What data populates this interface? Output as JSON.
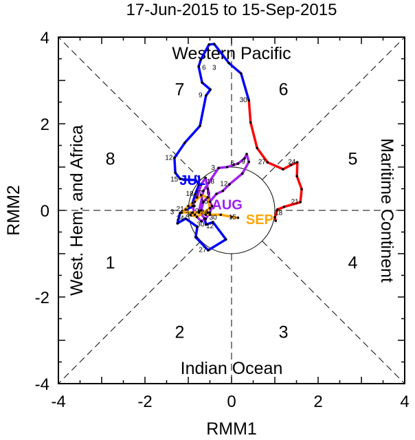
{
  "chart_data": {
    "type": "line",
    "title": "17-Jun-2015 to 15-Sep-2015",
    "xlabel": "RMM1",
    "ylabel": "RMM2",
    "xlim": [
      -4,
      4
    ],
    "ylim": [
      -4,
      4
    ],
    "xticks": [
      -4,
      -2,
      0,
      2,
      4
    ],
    "yticks": [
      -4,
      -2,
      0,
      2,
      4
    ],
    "tick_labels": [
      "-4",
      "-2",
      "0",
      "2",
      "4"
    ],
    "unit_circle_radius": 1,
    "regions": {
      "top": "Western Pacific",
      "bottom": "Indian Ocean",
      "left": "West. Hem. and Africa",
      "right": "Maritime Continent"
    },
    "phases": [
      {
        "label": "1",
        "x": -2.8,
        "y": -1.2
      },
      {
        "label": "2",
        "x": -1.2,
        "y": -2.8
      },
      {
        "label": "3",
        "x": 1.2,
        "y": -2.8
      },
      {
        "label": "4",
        "x": 2.8,
        "y": -1.2
      },
      {
        "label": "5",
        "x": 2.8,
        "y": 1.2
      },
      {
        "label": "6",
        "x": 1.2,
        "y": 2.8
      },
      {
        "label": "7",
        "x": -1.2,
        "y": 2.8
      },
      {
        "label": "8",
        "x": -2.8,
        "y": 1.2
      }
    ],
    "series": [
      {
        "name": "Jun",
        "color": "#ff0000",
        "start_day": 17,
        "month_label": "",
        "points": [
          [
            1.02,
            -0.24
          ],
          [
            1.0,
            -0.16
          ],
          [
            1.06,
            0.02
          ],
          [
            1.21,
            0.08
          ],
          [
            1.59,
            0.19
          ],
          [
            1.62,
            0.49
          ],
          [
            1.51,
            0.79
          ],
          [
            1.52,
            1.11
          ],
          [
            1.38,
            1.05
          ],
          [
            1.19,
            0.95
          ],
          [
            0.83,
            1.11
          ],
          [
            0.59,
            1.44
          ],
          [
            0.44,
            2.03
          ],
          [
            0.4,
            2.54
          ]
        ]
      },
      {
        "name": "Jul",
        "color": "#0000ff",
        "start_day": 1,
        "month_label": "JUL",
        "month_label_at": [
          -1.25,
          0.68
        ],
        "points": [
          [
            0.22,
            3.16
          ],
          [
            -0.06,
            3.4
          ],
          [
            -0.4,
            3.84
          ],
          [
            -0.52,
            3.83
          ],
          [
            -0.71,
            3.48
          ],
          [
            -0.76,
            3.32
          ],
          [
            -0.68,
            2.95
          ],
          [
            -0.49,
            2.79
          ],
          [
            -0.59,
            2.65
          ],
          [
            -0.73,
            1.95
          ],
          [
            -1.08,
            1.56
          ],
          [
            -1.32,
            1.21
          ],
          [
            -1.3,
            0.87
          ],
          [
            -1.19,
            0.73
          ],
          [
            -1.1,
            0.71
          ],
          [
            -0.83,
            0.7
          ],
          [
            -0.75,
            0.6
          ],
          [
            -0.84,
            0.37
          ],
          [
            -0.9,
            0.17
          ],
          [
            -0.86,
            0.1
          ],
          [
            -1.06,
            0.02
          ],
          [
            -1.19,
            -0.06
          ],
          [
            -1.25,
            -0.3
          ],
          [
            -1.06,
            -0.19
          ],
          [
            -0.79,
            -0.38
          ],
          [
            -0.83,
            -0.62
          ],
          [
            -0.54,
            -0.92
          ],
          [
            -0.13,
            -0.67
          ],
          [
            -0.43,
            -0.27
          ],
          [
            -0.59,
            -0.33
          ],
          [
            -0.62,
            -0.19
          ]
        ]
      },
      {
        "name": "Aug",
        "color": "#a020f0",
        "start_day": 1,
        "month_label": "AUG",
        "month_label_at": [
          -0.45,
          0.12
        ],
        "points": [
          [
            -0.75,
            -0.02
          ],
          [
            -0.65,
            0.45
          ],
          [
            -0.3,
            0.98
          ],
          [
            -0.1,
            1.0
          ],
          [
            0.05,
            1.05
          ],
          [
            0.15,
            1.08
          ],
          [
            0.3,
            1.2
          ],
          [
            0.35,
            1.3
          ],
          [
            0.4,
            1.12
          ],
          [
            0.25,
            0.85
          ],
          [
            -0.05,
            0.6
          ],
          [
            -0.05,
            0.6
          ],
          [
            -0.2,
            0.45
          ],
          [
            -0.35,
            0.38
          ],
          [
            -0.5,
            0.2
          ],
          [
            -0.55,
            0.5
          ],
          [
            -0.6,
            0.75
          ],
          [
            -0.7,
            0.6
          ],
          [
            -0.8,
            0.3
          ],
          [
            -0.9,
            0.1
          ],
          [
            -0.85,
            -0.1
          ],
          [
            -0.7,
            -0.25
          ],
          [
            -0.6,
            -0.2
          ],
          [
            -0.5,
            -0.05
          ],
          [
            -0.45,
            0.1
          ],
          [
            -0.55,
            0.3
          ],
          [
            -0.65,
            0.2
          ],
          [
            -0.7,
            0.0
          ],
          [
            -0.6,
            -0.1
          ],
          [
            -0.55,
            -0.05
          ],
          [
            -0.55,
            -0.05
          ]
        ]
      },
      {
        "name": "Sep",
        "color": "#ffa500",
        "start_day": 1,
        "month_label": "SEP",
        "month_label_at": [
          0.3,
          -0.22
        ],
        "points": [
          [
            -0.55,
            -0.05
          ],
          [
            -0.9,
            -0.05
          ],
          [
            -1.15,
            -0.05
          ],
          [
            -1.0,
            0.1
          ],
          [
            -0.85,
            0.2
          ],
          [
            -0.7,
            0.35
          ],
          [
            -0.55,
            0.3
          ],
          [
            -0.5,
            0.05
          ],
          [
            -0.8,
            -0.15
          ],
          [
            -0.95,
            -0.1
          ],
          [
            -0.75,
            -0.05
          ],
          [
            -0.5,
            -0.1
          ],
          [
            -0.25,
            -0.1
          ],
          [
            0.0,
            -0.15
          ],
          [
            0.15,
            -0.17
          ]
        ]
      }
    ],
    "day_label_every": 3
  }
}
